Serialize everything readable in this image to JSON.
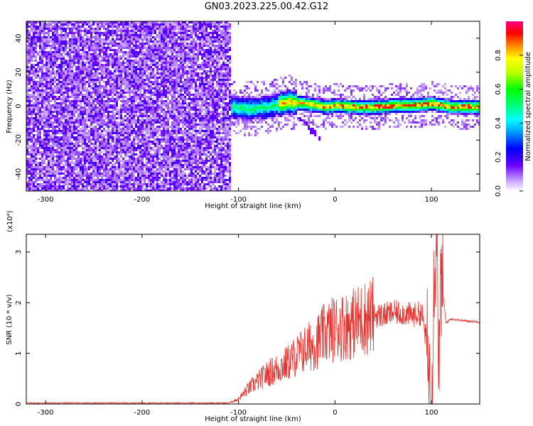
{
  "title": "GN03.2023.225.00.42.G12",
  "chart_data": [
    {
      "type": "heatmap",
      "xlabel": "Height of straight line (km)",
      "ylabel": "Frequency (Hz)",
      "xlim": [
        -320,
        150
      ],
      "ylim": [
        -50,
        50
      ],
      "x_ticks": [
        -300,
        -200,
        -100,
        0,
        100
      ],
      "y_ticks": [
        -40,
        -20,
        0,
        20,
        40
      ],
      "colorbar": {
        "label": "Normalized spectral amplitude",
        "range": [
          0,
          1
        ],
        "ticks": [
          0.0,
          0.2,
          0.4,
          0.6,
          0.8
        ]
      },
      "noise_region_x": [
        -320,
        -110
      ],
      "signal_ridge": {
        "x": [
          -110,
          -90,
          -70,
          -50,
          -30,
          -10,
          0,
          20,
          40,
          60,
          80,
          100,
          120,
          150
        ],
        "frequency": [
          0,
          -1,
          0,
          3,
          2,
          0,
          1,
          0,
          0,
          1,
          1,
          2,
          0,
          0
        ]
      },
      "grid": false
    },
    {
      "type": "line",
      "xlabel": "Height of straight line (km)",
      "ylabel": "SNR (10 * v/v)",
      "y_multiplier": "(x10⁴)",
      "xlim": [
        -320,
        150
      ],
      "ylim": [
        0,
        3.35
      ],
      "x_ticks": [
        -300,
        -200,
        -100,
        0,
        100
      ],
      "y_ticks": [
        0,
        1,
        2,
        3
      ],
      "line_color": "#e8312c",
      "series": [
        {
          "x": [
            -320,
            -110,
            -100,
            -90,
            -80,
            -70,
            -60,
            -50,
            -40,
            -30,
            -20,
            -10,
            0,
            10,
            20,
            30,
            40,
            50,
            60,
            70,
            80,
            90,
            95,
            100,
            103,
            106,
            108,
            110,
            115,
            120,
            130,
            150
          ],
          "values": [
            0.02,
            0.02,
            0.1,
            0.3,
            0.45,
            0.6,
            0.7,
            0.8,
            0.95,
            1.1,
            1.2,
            1.4,
            1.5,
            1.55,
            1.6,
            1.7,
            1.75,
            1.75,
            1.8,
            1.8,
            1.75,
            1.8,
            1.2,
            0.1,
            2.9,
            3.3,
            0.3,
            2.6,
            1.6,
            1.68,
            1.65,
            1.62
          ]
        }
      ],
      "grid": false
    }
  ]
}
